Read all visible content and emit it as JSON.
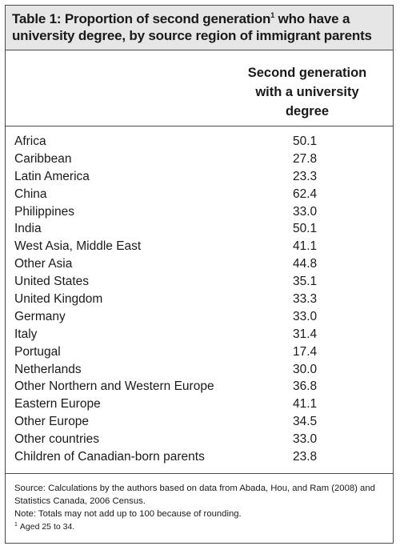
{
  "title": {
    "line1_pre": "Table 1: Proportion of second generation",
    "footnote_mark": "1",
    "line1_post": " who have a",
    "line2": "university degree, by source region of immigrant parents"
  },
  "column_header": [
    "Second generation",
    "with a university",
    "degree"
  ],
  "rows": [
    {
      "region": "Africa",
      "value": "50.1"
    },
    {
      "region": "Caribbean",
      "value": "27.8"
    },
    {
      "region": "Latin America",
      "value": "23.3"
    },
    {
      "region": "China",
      "value": "62.4"
    },
    {
      "region": "Philippines",
      "value": "33.0"
    },
    {
      "region": "India",
      "value": "50.1"
    },
    {
      "region": "West Asia, Middle East",
      "value": "41.1"
    },
    {
      "region": "Other Asia",
      "value": "44.8"
    },
    {
      "region": "United States",
      "value": "35.1"
    },
    {
      "region": "United Kingdom",
      "value": "33.3"
    },
    {
      "region": "Germany",
      "value": "33.0"
    },
    {
      "region": "Italy",
      "value": "31.4"
    },
    {
      "region": "Portugal",
      "value": "17.4"
    },
    {
      "region": "Netherlands",
      "value": "30.0"
    },
    {
      "region": "Other Northern and Western Europe",
      "value": "36.8"
    },
    {
      "region": "Eastern Europe",
      "value": "41.1"
    },
    {
      "region": "Other Europe",
      "value": "34.5"
    },
    {
      "region": "Other countries",
      "value": "33.0"
    },
    {
      "region": "Children of Canadian-born parents",
      "value": "23.8"
    }
  ],
  "notes": {
    "source": "Source: Calculations by the authors based on data from Abada, Hou, and Ram (2008) and Statistics Canada, 2006 Census.",
    "note": "Note: Totals may not add up to 100 because of rounding.",
    "footnote_mark": "1",
    "footnote": "Aged 25 to 34."
  }
}
